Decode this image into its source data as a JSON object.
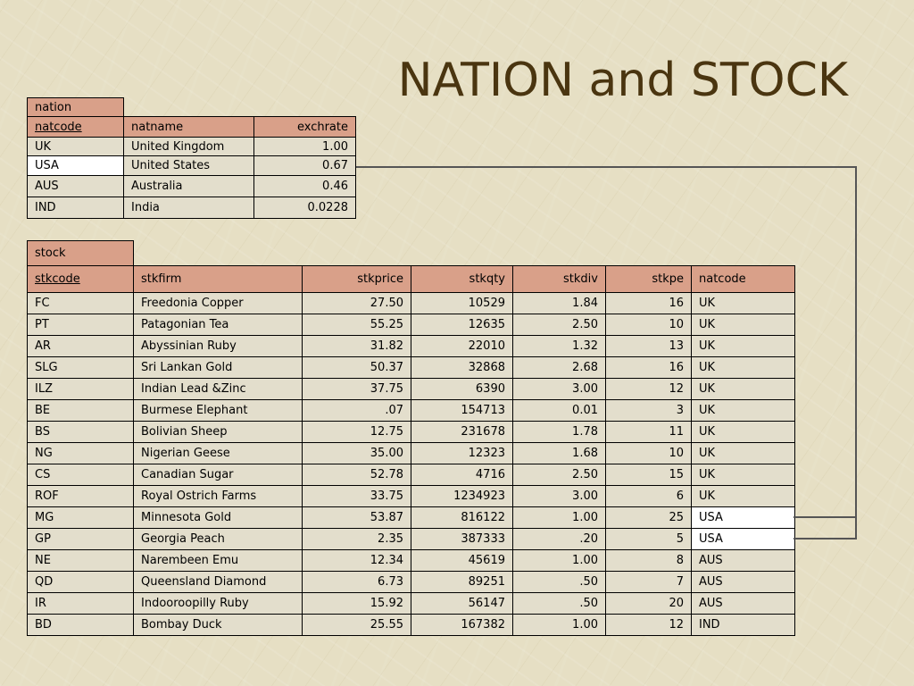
{
  "slide": {
    "title": "NATION and STOCK"
  },
  "nation": {
    "caption": "nation",
    "headers": [
      "natcode",
      "natname",
      "exchrate"
    ],
    "rows": [
      [
        "UK",
        "United Kingdom",
        "1.00"
      ],
      [
        "USA",
        "United States",
        "0.67"
      ],
      [
        "AUS",
        "Australia",
        "0.46"
      ],
      [
        "IND",
        "India",
        "0.0228"
      ]
    ]
  },
  "stock": {
    "caption": "stock",
    "headers": [
      "stkcode",
      "stkfirm",
      "stkprice",
      "stkqty",
      "stkdiv",
      "stkpe",
      "natcode"
    ],
    "rows": [
      [
        "FC",
        "Freedonia Copper",
        "27.50",
        "10529",
        "1.84",
        "16",
        "UK"
      ],
      [
        "PT",
        "Patagonian Tea",
        "55.25",
        "12635",
        "2.50",
        "10",
        "UK"
      ],
      [
        "AR",
        "Abyssinian Ruby",
        "31.82",
        "22010",
        "1.32",
        "13",
        "UK"
      ],
      [
        "SLG",
        "Sri Lankan Gold",
        "50.37",
        "32868",
        "2.68",
        "16",
        "UK"
      ],
      [
        "ILZ",
        "Indian Lead &Zinc",
        "37.75",
        "6390",
        "3.00",
        "12",
        "UK"
      ],
      [
        "BE",
        "Burmese Elephant",
        ".07",
        "154713",
        "0.01",
        "3",
        "UK"
      ],
      [
        "BS",
        "Bolivian Sheep",
        "12.75",
        "231678",
        "1.78",
        "11",
        "UK"
      ],
      [
        "NG",
        "Nigerian Geese",
        "35.00",
        "12323",
        "1.68",
        "10",
        "UK"
      ],
      [
        "CS",
        "Canadian Sugar",
        "52.78",
        "4716",
        "2.50",
        "15",
        "UK"
      ],
      [
        "ROF",
        "Royal Ostrich Farms",
        "33.75",
        "1234923",
        "3.00",
        "6",
        "UK"
      ],
      [
        "MG",
        "Minnesota Gold",
        "53.87",
        "816122",
        "1.00",
        "25",
        "USA"
      ],
      [
        "GP",
        "Georgia Peach",
        "2.35",
        "387333",
        ".20",
        "5",
        "USA"
      ],
      [
        "NE",
        "Narembeen Emu",
        "12.34",
        "45619",
        "1.00",
        "8",
        "AUS"
      ],
      [
        "QD",
        "Queensland Diamond",
        "6.73",
        "89251",
        ".50",
        "7",
        "AUS"
      ],
      [
        "IR",
        "Indooroopilly Ruby",
        "15.92",
        "56147",
        ".50",
        "20",
        "AUS"
      ],
      [
        "BD",
        "Bombay Duck",
        "25.55",
        "167382",
        "1.00",
        "12",
        "IND"
      ]
    ]
  }
}
